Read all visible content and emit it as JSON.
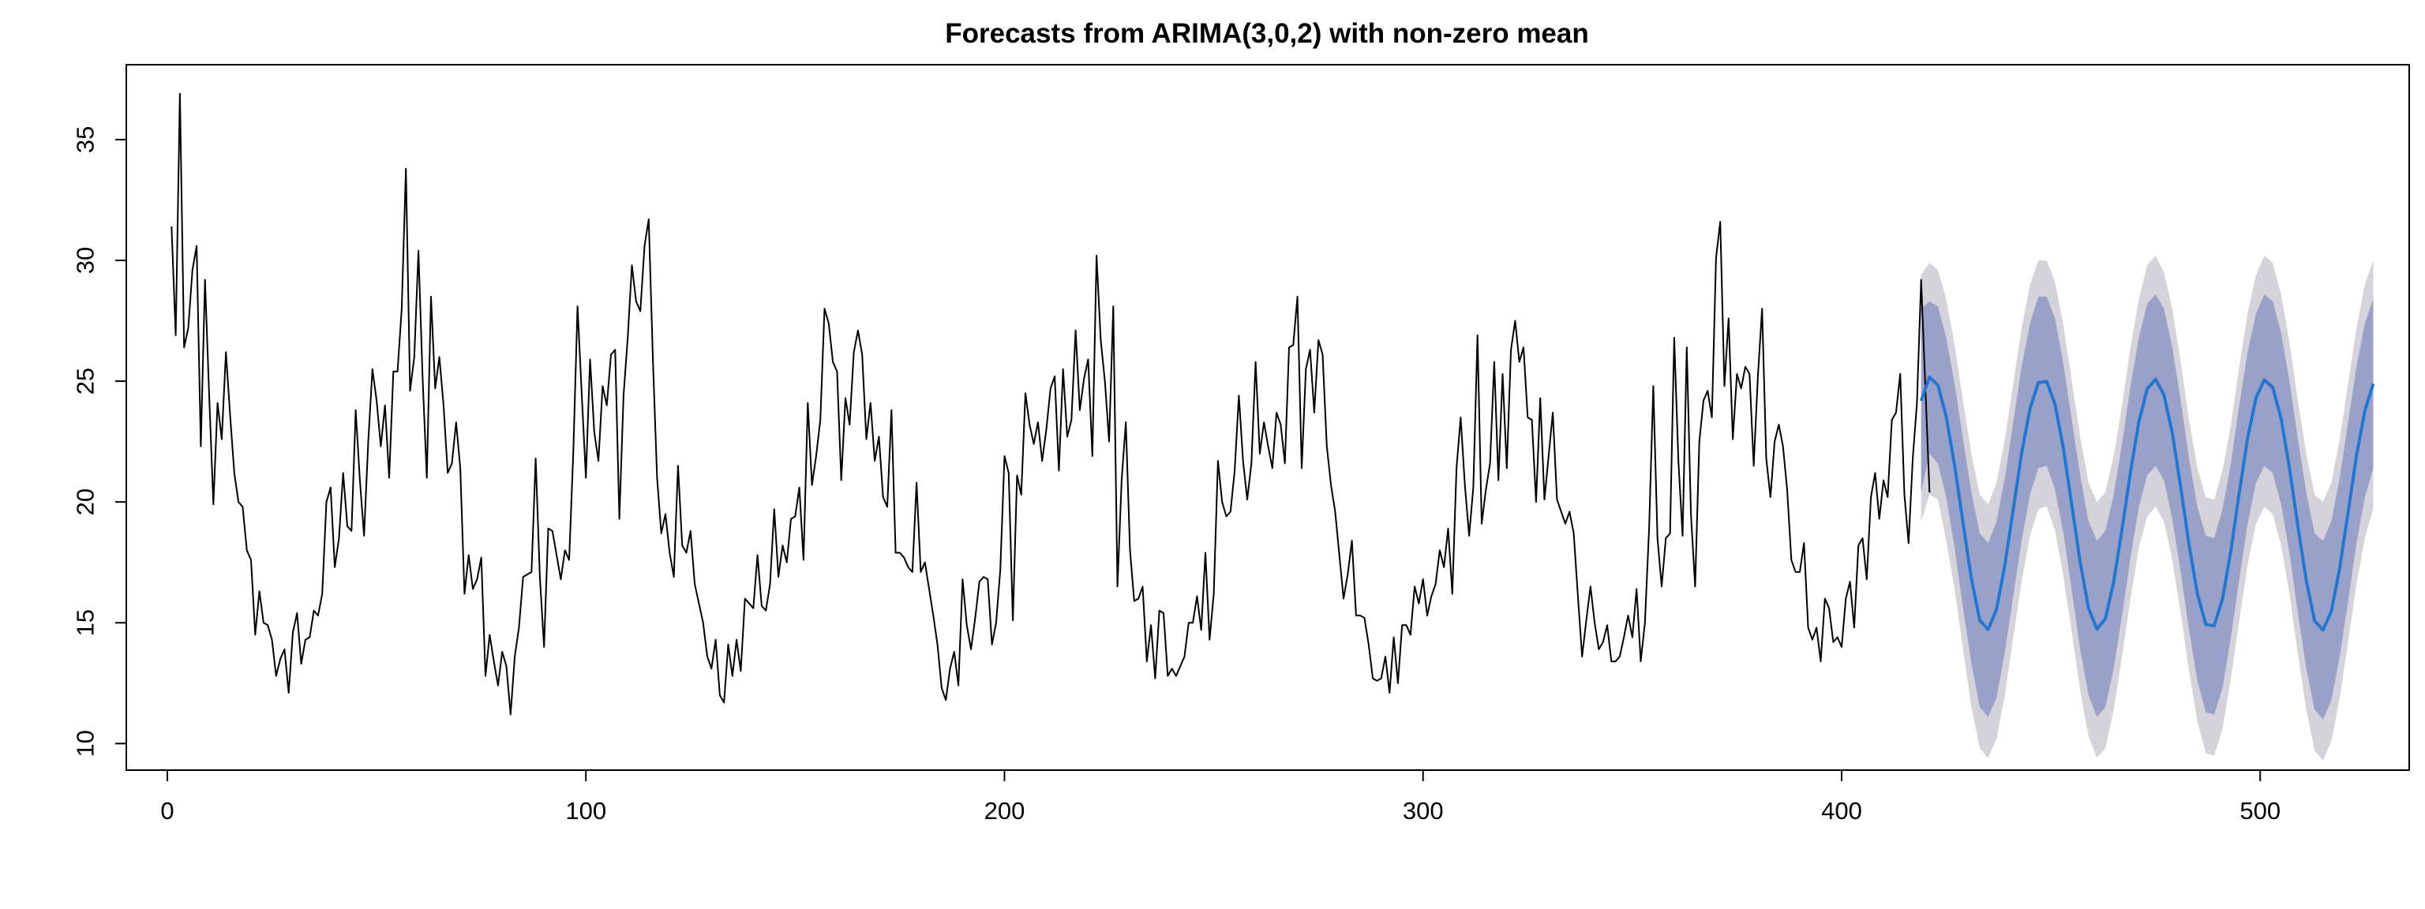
{
  "chart_data": {
    "type": "line",
    "title": "Forecasts from ARIMA(3,0,2) with non-zero mean",
    "xlabel": "",
    "ylabel": "",
    "xlim": [
      -9.8,
      535.6
    ],
    "ylim": [
      8.9,
      38.1
    ],
    "x_ticks": [
      0,
      100,
      200,
      300,
      400,
      500
    ],
    "y_ticks": [
      10,
      15,
      20,
      25,
      30,
      35
    ],
    "grid": false,
    "legend": "none",
    "series": [
      {
        "role": "observed",
        "color": "#000000",
        "x_start": 1,
        "x_step": 1,
        "values": [
          31.4,
          26.9,
          36.9,
          26.4,
          27.2,
          29.6,
          30.6,
          22.3,
          29.2,
          24.4,
          19.9,
          24.1,
          22.6,
          26.2,
          23.6,
          21.2,
          20.0,
          19.8,
          18.0,
          17.6,
          14.5,
          16.3,
          15.0,
          14.9,
          14.3,
          12.8,
          13.5,
          13.9,
          12.1,
          14.6,
          15.4,
          13.3,
          14.3,
          14.4,
          15.5,
          15.3,
          16.2,
          20.0,
          20.6,
          17.3,
          18.5,
          21.2,
          19.0,
          18.8,
          23.8,
          20.9,
          18.6,
          22.5,
          25.5,
          24.2,
          22.3,
          24.0,
          21.0,
          25.4,
          25.4,
          28.0,
          33.8,
          24.6,
          26.0,
          30.4,
          25.1,
          21.0,
          28.5,
          24.7,
          26.0,
          24.0,
          21.2,
          21.6,
          23.3,
          21.4,
          16.2,
          17.8,
          16.4,
          16.8,
          17.7,
          12.8,
          14.5,
          13.4,
          12.4,
          13.8,
          13.2,
          11.2,
          13.6,
          14.8,
          16.9,
          17.0,
          17.1,
          21.8,
          16.9,
          14.0,
          18.9,
          18.8,
          17.8,
          16.8,
          18.0,
          17.6,
          22.1,
          28.1,
          24.5,
          21.0,
          25.9,
          22.9,
          21.7,
          24.8,
          24.0,
          26.1,
          26.3,
          19.3,
          24.4,
          26.8,
          29.8,
          28.3,
          27.9,
          30.6,
          31.7,
          25.9,
          21.0,
          18.7,
          19.5,
          17.9,
          16.9,
          21.5,
          18.2,
          17.9,
          18.8,
          16.6,
          15.8,
          15.0,
          13.6,
          13.1,
          14.3,
          12.0,
          11.7,
          14.1,
          12.8,
          14.3,
          13.0,
          16.0,
          15.8,
          15.6,
          17.8,
          15.7,
          15.5,
          16.6,
          19.7,
          16.9,
          18.2,
          17.5,
          19.3,
          19.4,
          20.6,
          17.6,
          24.1,
          20.7,
          21.9,
          23.4,
          28.0,
          27.4,
          25.8,
          25.4,
          20.9,
          24.3,
          23.2,
          26.2,
          27.1,
          26.1,
          22.6,
          24.1,
          21.7,
          22.7,
          20.2,
          19.8,
          23.8,
          17.9,
          17.9,
          17.7,
          17.3,
          17.1,
          20.8,
          17.1,
          17.5,
          16.4,
          15.3,
          14.1,
          12.3,
          11.8,
          13.1,
          13.8,
          12.4,
          16.8,
          14.9,
          13.9,
          15.2,
          16.7,
          16.9,
          16.8,
          14.1,
          15.0,
          17.2,
          21.9,
          21.2,
          15.1,
          21.1,
          20.3,
          24.5,
          23.2,
          22.4,
          23.3,
          21.7,
          23.0,
          24.7,
          25.2,
          21.3,
          25.5,
          22.7,
          23.4,
          27.1,
          23.8,
          25.1,
          25.9,
          21.9,
          30.2,
          26.7,
          25.0,
          22.5,
          28.1,
          16.5,
          20.9,
          23.3,
          18.0,
          15.9,
          16.0,
          16.5,
          13.4,
          14.9,
          12.7,
          15.5,
          15.4,
          12.8,
          13.1,
          12.8,
          13.2,
          13.6,
          15.0,
          15.0,
          16.1,
          14.7,
          17.9,
          14.3,
          16.2,
          21.7,
          20.0,
          19.4,
          19.6,
          21.3,
          24.4,
          21.7,
          20.1,
          21.6,
          25.8,
          22.0,
          23.3,
          22.3,
          21.4,
          23.7,
          23.2,
          21.6,
          26.4,
          26.5,
          28.5,
          21.4,
          25.5,
          26.3,
          23.7,
          26.7,
          26.1,
          22.3,
          20.7,
          19.6,
          17.8,
          16.0,
          17.0,
          18.4,
          15.3,
          15.3,
          15.2,
          14.1,
          12.7,
          12.6,
          12.7,
          13.6,
          12.1,
          14.4,
          12.5,
          14.9,
          14.9,
          14.5,
          16.5,
          15.8,
          16.8,
          15.3,
          16.1,
          16.6,
          18.0,
          17.3,
          18.9,
          16.2,
          21.4,
          23.5,
          20.7,
          18.6,
          20.6,
          26.9,
          19.1,
          20.5,
          21.6,
          25.8,
          20.9,
          25.3,
          21.4,
          26.3,
          27.5,
          25.8,
          26.4,
          23.5,
          23.4,
          20.0,
          24.3,
          20.1,
          21.9,
          23.7,
          20.1,
          19.6,
          19.1,
          19.6,
          18.7,
          16.1,
          13.6,
          15.1,
          16.5,
          15.0,
          13.9,
          14.2,
          14.9,
          13.4,
          13.4,
          13.6,
          14.4,
          15.3,
          14.4,
          16.4,
          13.4,
          15.0,
          18.9,
          24.8,
          18.5,
          16.5,
          18.5,
          18.7,
          26.8,
          21.7,
          18.6,
          26.4,
          19.5,
          16.5,
          22.5,
          24.2,
          24.6,
          23.5,
          30.1,
          31.6,
          24.8,
          27.6,
          22.6,
          25.3,
          24.7,
          25.6,
          25.3,
          21.5,
          25.2,
          28.0,
          21.8,
          20.2,
          22.5,
          23.2,
          22.3,
          20.5,
          17.6,
          17.1,
          17.1,
          18.3,
          14.8,
          14.3,
          14.8,
          13.4,
          16.0,
          15.6,
          14.2,
          14.4,
          14.0,
          16.0,
          16.7,
          14.8,
          18.2,
          18.5,
          16.8,
          20.2,
          21.2,
          19.3,
          20.9,
          20.2,
          23.4,
          23.7,
          25.3,
          20.3,
          18.3,
          21.8,
          24.1,
          29.2,
          24.8,
          20.4
        ]
      },
      {
        "role": "forecast",
        "color": "#2176d2",
        "x_start": 419,
        "x_step": 2,
        "values": [
          24.19,
          25.17,
          24.84,
          23.53,
          21.51,
          19.13,
          16.82,
          15.1,
          14.72,
          15.56,
          17.39,
          19.7,
          22.02,
          23.86,
          24.94,
          24.99,
          24.03,
          22.2,
          19.86,
          17.5,
          15.6,
          14.74,
          15.16,
          16.69,
          18.87,
          21.24,
          23.31,
          24.68,
          25.08,
          24.43,
          22.85,
          20.63,
          18.23,
          16.19,
          14.93,
          14.87,
          15.99,
          17.98,
          20.38,
          22.64,
          24.31,
          25.05,
          24.75,
          23.46,
          21.4,
          18.99,
          16.74,
          15.08,
          14.7,
          15.48,
          17.27,
          19.57,
          21.92,
          23.77,
          24.89
        ]
      },
      {
        "role": "forecast-interval-80",
        "color": "#9aa1c9",
        "x_start": 419,
        "x_step": 2,
        "lower": [
          20.4,
          22.0,
          21.6,
          20.2,
          18.1,
          15.6,
          13.3,
          11.5,
          11.1,
          11.9,
          13.8,
          16.1,
          18.4,
          20.3,
          21.4,
          21.5,
          20.5,
          18.7,
          16.3,
          13.9,
          12.0,
          11.1,
          11.5,
          13.1,
          15.3,
          17.7,
          19.8,
          21.1,
          21.5,
          20.9,
          19.3,
          17.1,
          14.7,
          12.6,
          11.3,
          11.2,
          12.3,
          14.4,
          16.8,
          19.1,
          20.8,
          21.5,
          21.2,
          19.9,
          17.9,
          15.4,
          13.1,
          11.4,
          11.0,
          11.8,
          13.6,
          15.9,
          18.3,
          20.2,
          21.4
        ],
        "upper": [
          28.0,
          28.3,
          28.1,
          26.8,
          24.9,
          22.6,
          20.4,
          18.7,
          18.3,
          19.2,
          21.0,
          23.3,
          25.6,
          27.4,
          28.5,
          28.5,
          27.6,
          25.7,
          23.4,
          21.1,
          19.2,
          18.4,
          18.8,
          20.3,
          22.4,
          24.8,
          26.8,
          28.2,
          28.6,
          28.0,
          26.4,
          24.2,
          21.8,
          19.8,
          18.6,
          18.5,
          19.7,
          21.6,
          24.0,
          26.2,
          27.8,
          28.6,
          28.3,
          27.0,
          25.0,
          22.6,
          20.4,
          18.7,
          18.4,
          19.2,
          21.0,
          23.3,
          25.6,
          27.4,
          28.4
        ]
      },
      {
        "role": "forecast-interval-95",
        "color": "#d3d3d9",
        "x_start": 419,
        "x_step": 2,
        "lower": [
          19.2,
          20.3,
          20.1,
          18.4,
          16.4,
          13.9,
          11.5,
          9.8,
          9.4,
          10.2,
          12.0,
          14.4,
          16.7,
          18.6,
          19.7,
          19.8,
          18.8,
          16.9,
          14.6,
          12.2,
          10.3,
          9.4,
          9.8,
          11.4,
          13.6,
          16.0,
          18.1,
          19.4,
          19.8,
          19.2,
          17.6,
          15.4,
          13.0,
          10.9,
          9.6,
          9.5,
          10.6,
          12.7,
          15.1,
          17.4,
          19.1,
          19.8,
          19.5,
          18.2,
          16.2,
          13.7,
          11.4,
          9.7,
          9.3,
          10.1,
          11.9,
          14.2,
          16.6,
          18.5,
          19.7
        ],
        "upper": [
          29.4,
          29.9,
          29.6,
          28.4,
          26.5,
          24.2,
          22.0,
          20.3,
          19.9,
          20.8,
          22.6,
          24.9,
          27.2,
          29.0,
          30.0,
          30.0,
          29.1,
          27.3,
          25.0,
          22.7,
          20.8,
          20.0,
          20.4,
          21.9,
          24.0,
          26.4,
          28.4,
          29.8,
          30.2,
          29.5,
          28.0,
          25.8,
          23.4,
          21.4,
          20.2,
          20.1,
          21.3,
          23.2,
          25.6,
          27.8,
          29.4,
          30.2,
          29.9,
          28.6,
          26.6,
          24.2,
          22.0,
          20.3,
          20.0,
          20.8,
          22.6,
          24.9,
          27.2,
          29.0,
          30.0
        ]
      }
    ]
  }
}
